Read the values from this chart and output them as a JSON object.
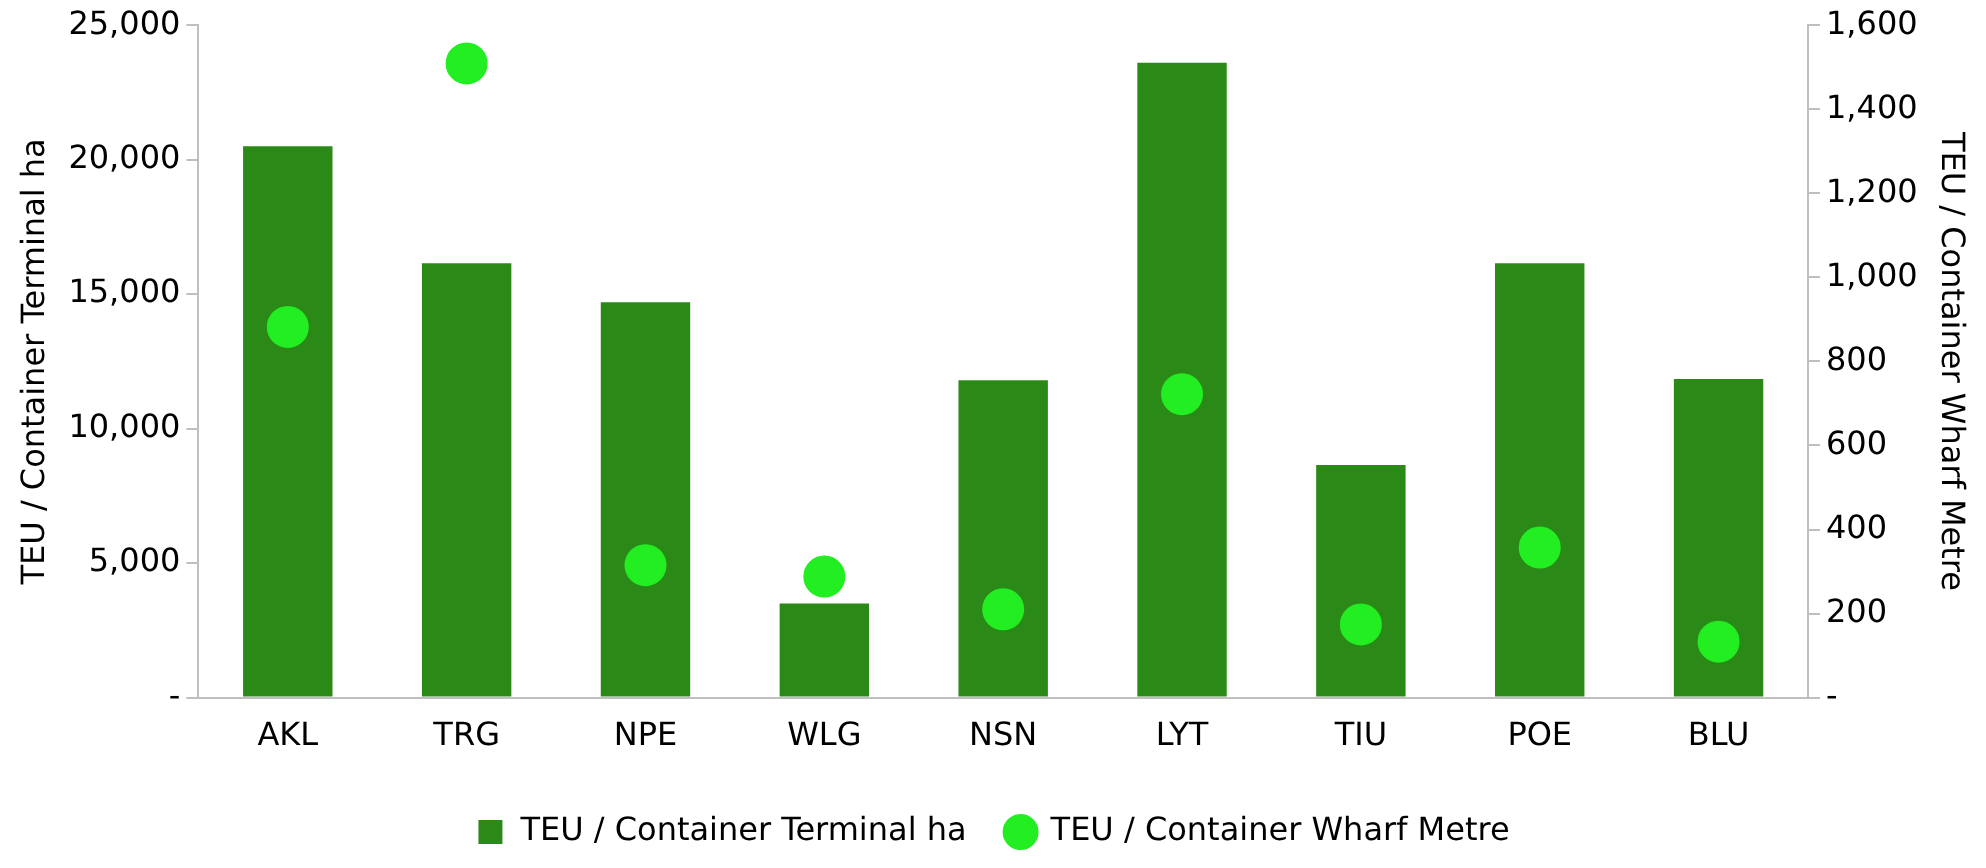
{
  "chart_data": {
    "type": "bar",
    "categories": [
      "AKL",
      "TRG",
      "NPE",
      "WLG",
      "NSN",
      "LYT",
      "TIU",
      "POE",
      "BLU"
    ],
    "series": [
      {
        "name": "TEU / Container Terminal ha",
        "color": "#2b8a17",
        "values": [
          20500,
          16150,
          14700,
          3500,
          11800,
          23600,
          8650,
          16150,
          11850
        ]
      },
      {
        "name": "TEU / Container Wharf Metre",
        "type": "scatter",
        "axis": "y2",
        "color": "#22ee22",
        "values": [
          882,
          1509,
          315,
          288,
          210,
          722,
          174,
          357,
          133
        ]
      }
    ],
    "ylabel": "TEU / Container Terminal ha",
    "y2label": "TEU / Container Wharf Metre",
    "ylim": [
      0,
      25000
    ],
    "yticks": [
      {
        "value": 0,
        "label": "-"
      },
      {
        "value": 5000,
        "label": "5,000"
      },
      {
        "value": 10000,
        "label": "10,000"
      },
      {
        "value": 15000,
        "label": "15,000"
      },
      {
        "value": 20000,
        "label": "20,000"
      },
      {
        "value": 25000,
        "label": "25,000"
      }
    ],
    "y2lim": [
      0,
      1600
    ],
    "y2ticks": [
      {
        "value": 0,
        "label": "-"
      },
      200,
      400,
      600,
      800,
      {
        "value": 1000,
        "label": "1,000"
      },
      {
        "value": 1200,
        "label": "1,200"
      },
      {
        "value": 1400,
        "label": "1,400"
      },
      {
        "value": 1600,
        "label": "1,600"
      }
    ],
    "grid": false,
    "legend": "bottom",
    "marker": "circle"
  }
}
